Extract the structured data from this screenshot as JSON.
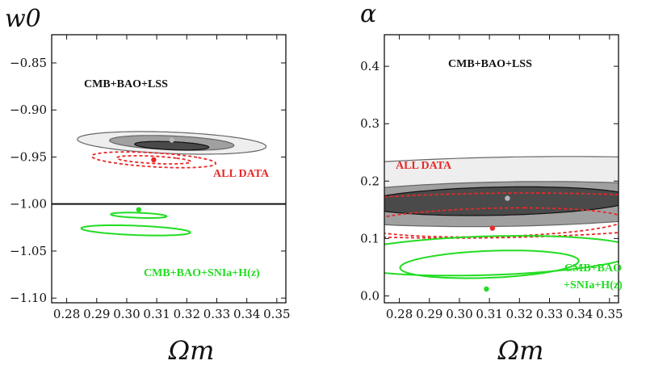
{
  "chart_data": [
    {
      "type": "contour",
      "panel": "left",
      "xlabel": "Ωm",
      "ylabel": "w0",
      "xlim": [
        0.275,
        0.353
      ],
      "ylim": [
        -1.105,
        -0.82
      ],
      "x_ticks": [
        "0.28",
        "0.29",
        "0.30",
        "0.31",
        "0.32",
        "0.33",
        "0.34",
        "0.35"
      ],
      "x_tick_values": [
        0.28,
        0.29,
        0.3,
        0.31,
        0.32,
        0.33,
        0.34,
        0.35
      ],
      "y_ticks": [
        "−0.85",
        "−0.90",
        "−0.95",
        "−1.00",
        "−1.05",
        "−1.10"
      ],
      "y_tick_values": [
        -0.85,
        -0.9,
        -0.95,
        -1.0,
        -1.05,
        -1.1
      ],
      "reference_line": {
        "y": -1.0
      },
      "series": [
        {
          "name": "CMB+BAO+LSS",
          "label": "CMB+BAO+LSS",
          "color": "#111111",
          "best_fit": [
            0.315,
            -0.932
          ],
          "contours": [
            {
              "level": "3σ",
              "cx": 0.315,
              "cy": -0.935,
              "a": 0.0278,
              "b": 0.0129,
              "angle_deg": 28.95,
              "fill": "#eeeeee",
              "stroke": "#666666"
            },
            {
              "level": "2σ",
              "cx": 0.315,
              "cy": -0.935,
              "a": 0.0181,
              "b": 0.0085,
              "angle_deg": 29.97,
              "fill": "#a0a0a0",
              "stroke": "#666666"
            },
            {
              "level": "1σ",
              "cx": 0.315,
              "cy": -0.938,
              "a": 0.0105,
              "b": 0.005,
              "angle_deg": 32.66,
              "fill": "#4a4a4a",
              "stroke": "#111111"
            }
          ]
        },
        {
          "name": "ALL DATA",
          "label": "ALL DATA",
          "color": "#e82828",
          "best_fit": [
            0.309,
            -0.953
          ],
          "contours": [
            {
              "level": "2σ",
              "cx": 0.309,
              "cy": -0.953,
              "a": 0.0167,
              "b": 0.0092,
              "angle_deg": 30.13,
              "dashed": true
            },
            {
              "level": "1σ",
              "cx": 0.309,
              "cy": -0.953,
              "a": 0.0095,
              "b": 0.005,
              "angle_deg": 37.82,
              "dashed": true
            }
          ]
        },
        {
          "name": "CMB+BAO+SNIa+H(z)",
          "label": "CMB+BAO+SNIa+H(z)",
          "color": "#22dd22",
          "best_fit": [
            0.304,
            -1.006
          ],
          "contours": [
            {
              "level": "2σ",
              "cx": 0.303,
              "cy": -1.028,
              "a": 0.0137,
              "b": 0.0066,
              "angle_deg": 48.18
            },
            {
              "level": "1σ",
              "cx": 0.304,
              "cy": -1.012,
              "a": 0.0073,
              "b": 0.0034,
              "angle_deg": 45.91
            }
          ]
        }
      ]
    },
    {
      "type": "contour",
      "panel": "right",
      "xlabel": "Ωm",
      "ylabel": "α",
      "xlim": [
        0.275,
        0.353
      ],
      "ylim": [
        -0.012,
        0.455
      ],
      "x_ticks": [
        "0.28",
        "0.29",
        "0.30",
        "0.31",
        "0.32",
        "0.33",
        "0.34",
        "0.35"
      ],
      "x_tick_values": [
        0.28,
        0.29,
        0.3,
        0.31,
        0.32,
        0.33,
        0.34,
        0.35
      ],
      "y_ticks": [
        "0.0",
        "0.1",
        "0.2",
        "0.3",
        "0.4"
      ],
      "y_tick_values": [
        0.0,
        0.1,
        0.2,
        0.3,
        0.4
      ],
      "series": [
        {
          "name": "CMB+BAO+LSS",
          "label": "CMB+BAO+LSS",
          "color": "#111111",
          "best_fit": [
            0.316,
            0.17
          ],
          "contours": [
            {
              "level": "3σ",
              "cx": 0.318,
              "cy": 0.185,
              "a": 0.3031,
              "b": 0.0208,
              "angle_deg": 86.0,
              "fill": "#eeeeee",
              "stroke": "#666666"
            },
            {
              "level": "2σ",
              "cx": 0.316,
              "cy": 0.16,
              "a": 0.2059,
              "b": 0.0141,
              "angle_deg": 85.99,
              "fill": "#a0a0a0",
              "stroke": "#666666"
            },
            {
              "level": "1σ",
              "cx": 0.313,
              "cy": 0.165,
              "a": 0.1311,
              "b": 0.0085,
              "angle_deg": 85.6,
              "fill": "#4a4a4a",
              "stroke": "#111111"
            }
          ]
        },
        {
          "name": "ALL DATA",
          "label": "ALL DATA",
          "color": "#e82828",
          "best_fit": [
            0.311,
            0.118
          ],
          "contours": [
            {
              "level": "2σ",
              "cx": 0.31,
              "cy": 0.14,
              "a": 0.2058,
              "b": 0.0154,
              "angle_deg": 85.85,
              "dashed": true
            },
            {
              "level": "1σ",
              "cx": 0.311,
              "cy": 0.128,
              "a": 0.1331,
              "b": 0.0082,
              "angle_deg": 85.32,
              "dashed": true
            }
          ]
        },
        {
          "name": "CMB+BAO+SNIa+H(z)",
          "label": "CMB+BAO+SNIa+H(z)",
          "label_lines": [
            "CMB+BAO",
            "+SNIa+H(z)"
          ],
          "color": "#22dd22",
          "best_fit": [
            0.309,
            0.012
          ],
          "contours": [
            {
              "level": "2σ",
              "cx": 0.309,
              "cy": 0.07,
              "a": 0.1816,
              "b": 0.0094,
              "angle_deg": 86.11
            },
            {
              "level": "1σ",
              "cx": 0.31,
              "cy": 0.055,
              "a": 0.1267,
              "b": 0.0055,
              "angle_deg": 86.48
            }
          ]
        }
      ]
    }
  ]
}
